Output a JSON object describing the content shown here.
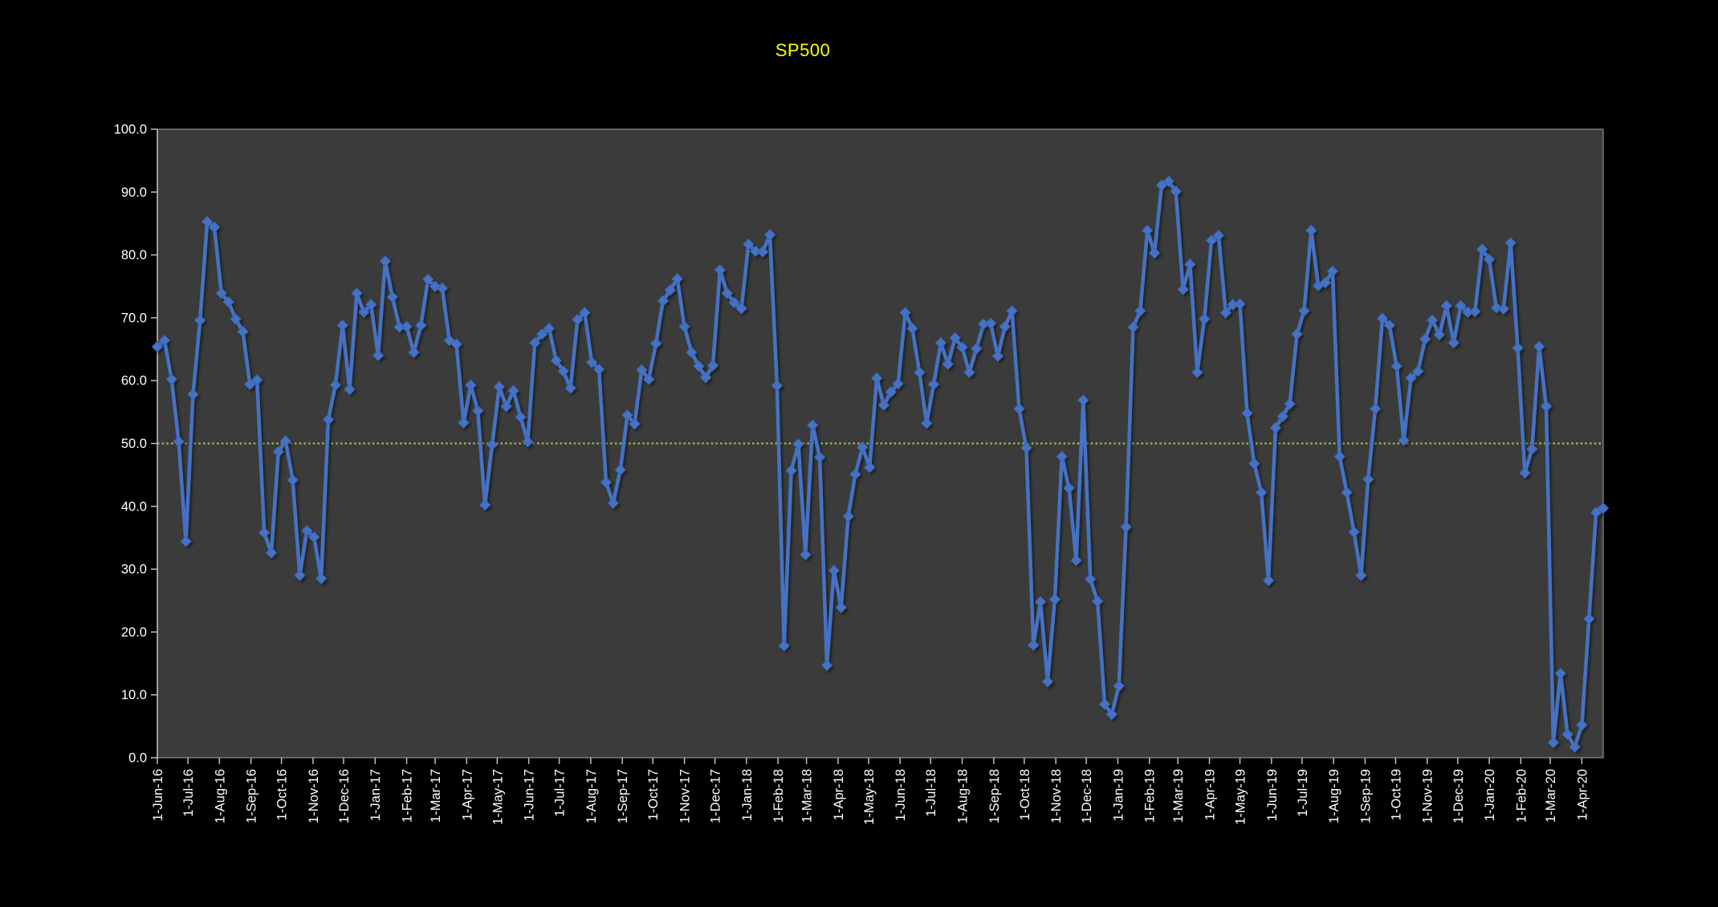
{
  "title": {
    "text": "SP500",
    "color": "#FFFF00"
  },
  "chart_data": {
    "type": "line",
    "title": "SP500",
    "xlabel": "",
    "ylabel": "",
    "ylim": [
      0,
      100
    ],
    "ytick_step": 10,
    "ytick_decimals": 1,
    "grid": "off",
    "legend": "none",
    "page_bg": "#000000",
    "plot_bg": "#3B3B3B",
    "axis_color": "#BFBFBF",
    "border_color": "#8C8C8C",
    "tick_label_color": "#FFFFFF",
    "hline": {
      "y": 50.0,
      "color": "#A6BE4A",
      "style": "dotted"
    },
    "x_tick_labels": [
      "1-Jun-16",
      "1-Jul-16",
      "1-Aug-16",
      "1-Sep-16",
      "1-Oct-16",
      "1-Nov-16",
      "1-Dec-16",
      "1-Jan-17",
      "1-Feb-17",
      "1-Mar-17",
      "1-Apr-17",
      "1-May-17",
      "1-Jun-17",
      "1-Jul-17",
      "1-Aug-17",
      "1-Sep-17",
      "1-Oct-17",
      "1-Nov-17",
      "1-Dec-17",
      "1-Jan-18",
      "1-Feb-18",
      "1-Mar-18",
      "1-Apr-18",
      "1-May-18",
      "1-Jun-18",
      "1-Jul-18",
      "1-Aug-18",
      "1-Sep-18",
      "1-Oct-18",
      "1-Nov-18",
      "1-Dec-18",
      "1-Jan-19",
      "1-Feb-19",
      "1-Mar-19",
      "1-Apr-19",
      "1-May-19",
      "1-Jun-19",
      "1-Jul-19",
      "1-Aug-19",
      "1-Sep-19",
      "1-Oct-19",
      "1-Nov-19",
      "1-Dec-19",
      "1-Jan-20",
      "1-Feb-20",
      "1-Mar-20",
      "1-Apr-20"
    ],
    "series": [
      {
        "name": "SP500",
        "color": "#4472C4",
        "marker": "diamond",
        "start_date": "1-Jun-16",
        "interval": "weekly",
        "values": [
          65.4,
          66.4,
          60.2,
          50.3,
          34.4,
          57.8,
          69.6,
          85.3,
          84.4,
          73.9,
          72.5,
          69.8,
          67.8,
          59.4,
          60.1,
          35.8,
          32.6,
          48.7,
          50.4,
          44.2,
          29.0,
          36.1,
          35.1,
          28.5,
          53.8,
          59.3,
          68.8,
          58.6,
          73.9,
          70.9,
          72.1,
          64.0,
          79.0,
          73.3,
          68.5,
          68.6,
          64.5,
          68.8,
          76.1,
          75.0,
          74.7,
          66.4,
          65.8,
          53.3,
          59.3,
          55.2,
          40.2,
          49.8,
          59.0,
          55.9,
          58.4,
          54.2,
          50.3,
          66.0,
          67.4,
          68.3,
          63.2,
          61.5,
          58.8,
          69.7,
          70.8,
          62.9,
          61.8,
          43.8,
          40.5,
          45.8,
          54.5,
          53.1,
          61.7,
          60.2,
          65.9,
          72.7,
          74.4,
          76.2,
          68.6,
          64.5,
          62.3,
          60.5,
          62.4,
          77.6,
          73.9,
          72.4,
          71.5,
          81.7,
          80.6,
          80.5,
          83.2,
          59.2,
          17.8,
          45.7,
          49.9,
          32.3,
          52.9,
          47.8,
          14.7,
          29.8,
          23.9,
          38.4,
          45.1,
          49.4,
          46.2,
          60.4,
          56.1,
          58.2,
          59.5,
          70.8,
          68.3,
          61.3,
          53.2,
          59.4,
          66.0,
          62.6,
          66.8,
          65.3,
          61.3,
          65.1,
          69.0,
          69.1,
          63.9,
          68.6,
          71.1,
          55.5,
          49.3,
          17.9,
          24.8,
          12.1,
          25.2,
          47.9,
          42.9,
          31.4,
          56.9,
          28.4,
          24.9,
          8.5,
          6.9,
          11.4,
          36.7,
          68.5,
          71.1,
          83.9,
          80.3,
          91.1,
          91.7,
          90.1,
          74.5,
          78.5,
          61.3,
          69.8,
          82.3,
          83.1,
          70.8,
          72.1,
          72.2,
          54.8,
          46.8,
          42.2,
          28.2,
          52.5,
          54.3,
          56.3,
          67.4,
          71.1,
          83.9,
          75.1,
          75.6,
          77.4,
          47.9,
          42.2,
          35.9,
          29.0,
          44.3,
          55.5,
          69.9,
          68.8,
          62.3,
          50.5,
          60.4,
          61.5,
          66.6,
          69.6,
          67.3,
          71.9,
          66.0,
          71.9,
          70.9,
          71.0,
          80.9,
          79.3,
          71.6,
          71.4,
          81.9,
          65.2,
          45.3,
          49.1,
          65.4,
          55.9,
          2.4,
          13.4,
          3.7,
          1.7,
          5.2,
          22.1,
          39.0,
          39.7
        ]
      }
    ]
  }
}
